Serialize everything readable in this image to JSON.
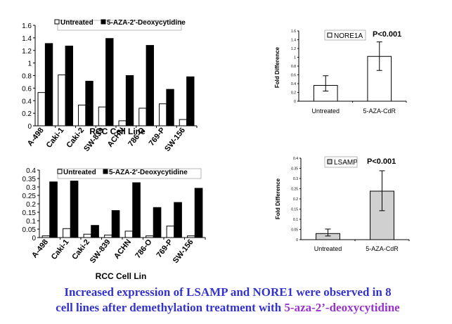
{
  "charts": [
    {
      "type": "bar",
      "categories": [
        "A-498",
        "Caki-1",
        "Caki-2",
        "SW-839",
        "ACHN",
        "786-O",
        "769-P",
        "SW-156"
      ],
      "series": [
        {
          "name": "Untreated",
          "values": [
            0.53,
            0.81,
            0.33,
            0.3,
            0.08,
            0.28,
            0.35,
            0.1
          ],
          "color": "#ffffff"
        },
        {
          "name": "5-AZA-2'-Deoxycytidine",
          "values": [
            1.31,
            1.27,
            0.71,
            1.39,
            0.8,
            1.28,
            0.58,
            0.78
          ],
          "color": "#000000"
        }
      ],
      "xlabel": "RCC Cell Line",
      "ylim": [
        0,
        1.6
      ],
      "yticks": [
        "0",
        "0.2",
        "0.4",
        "0.6",
        "0.8",
        "1",
        "1.2",
        "1.4",
        "1.6"
      ],
      "legend": "top"
    },
    {
      "type": "bar",
      "categories": [
        "Untreated",
        "5-AZA-CdR"
      ],
      "values": [
        0.36,
        1.02
      ],
      "errors": [
        [
          0.23,
          0.58
        ],
        [
          0.7,
          1.35
        ]
      ],
      "fills": [
        "#ffffff",
        "#ffffff"
      ],
      "ylabel": "Fold Difference",
      "ylim": [
        0,
        1.6
      ],
      "yticks": [
        "0",
        "0.2",
        "0.4",
        "0.6",
        "0.8",
        "1",
        "1.2",
        "1.4",
        "1.6"
      ],
      "legend_label": "NORE1A",
      "annotation": "P<0.001"
    },
    {
      "type": "bar",
      "categories": [
        "A-498",
        "Caki-1",
        "Caki-2",
        "SW-839",
        "ACHN",
        "786-O",
        "769-P",
        "SW-156"
      ],
      "series": [
        {
          "name": "Untreated",
          "values": [
            0.01,
            0.053,
            0.02,
            0.015,
            0.038,
            0.01,
            0.068,
            0.01
          ],
          "color": "#ffffff"
        },
        {
          "name": "5-AZA-2'-Deoxycytidine",
          "values": [
            0.33,
            0.335,
            0.072,
            0.16,
            0.325,
            0.178,
            0.208,
            0.292
          ],
          "color": "#000000"
        }
      ],
      "xlabel": "RCC Cell Lin",
      "ylim": [
        0,
        0.4
      ],
      "yticks": [
        "0",
        "0.05",
        "0.1",
        "0.15",
        "0.2",
        "0.25",
        "0.3",
        "0.35",
        "0.4"
      ],
      "legend": "top"
    },
    {
      "type": "bar",
      "categories": [
        "Untreated",
        "5-AZA-CdR"
      ],
      "values": [
        0.03,
        0.238
      ],
      "errors": [
        [
          0.018,
          0.052
        ],
        [
          0.142,
          0.338
        ]
      ],
      "fills": [
        "#d0d0d0",
        "#d0d0d0"
      ],
      "ylabel": "Fold Difference",
      "ylim": [
        0,
        0.4
      ],
      "yticks": [
        "0",
        "0.05",
        "0.1",
        "0.15",
        "0.2",
        "0.25",
        "0.3",
        "0.35",
        "0.4"
      ],
      "legend_label": "LSAMP",
      "annotation": "P<0.001"
    }
  ],
  "caption": {
    "line1": "Increased expression of LSAMP and NORE1 were observed in 8",
    "line2_prefix": "cell lines after demethylation treatment with ",
    "line2_highlight": "5-aza-2’-deoxycytidine"
  }
}
